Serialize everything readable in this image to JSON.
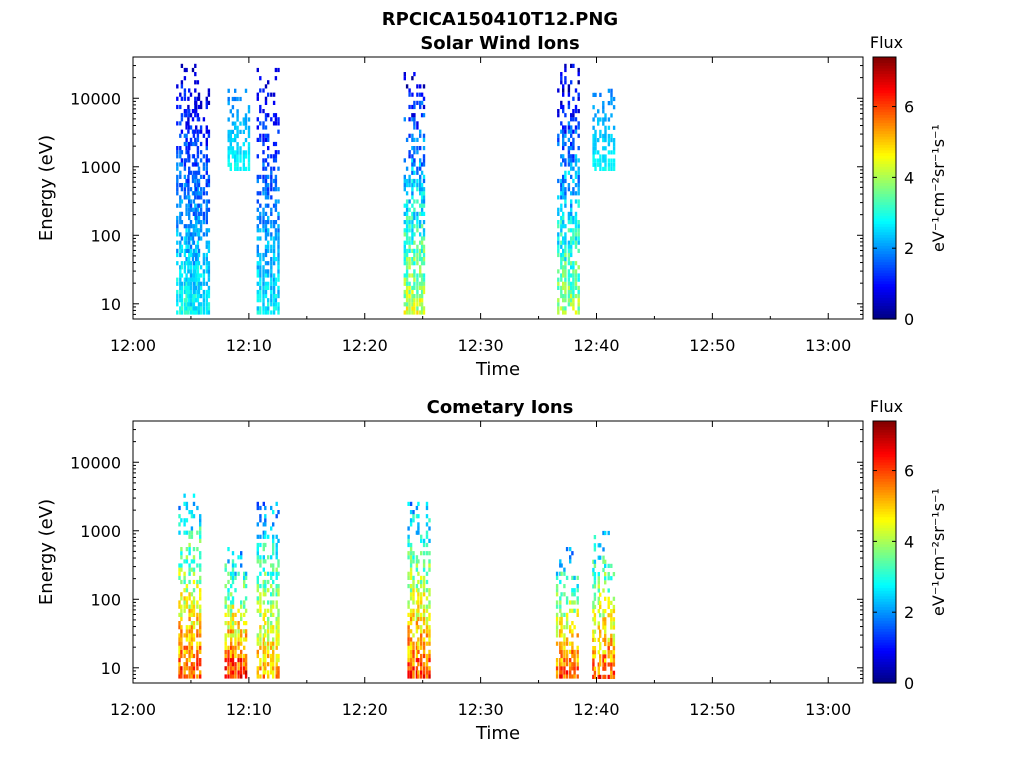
{
  "figure_title": "RPCICA150410T12.PNG",
  "chart_data": [
    {
      "type": "heatmap",
      "title": "Solar Wind Ions",
      "xlabel": "Time",
      "ylabel": "Energy (eV)",
      "x_ticks": [
        "12:00",
        "12:10",
        "12:20",
        "12:30",
        "12:40",
        "12:50",
        "13:00"
      ],
      "x_range": [
        "12:00",
        "13:03"
      ],
      "y_scale": "log",
      "y_ticks": [
        "10",
        "100",
        "1000",
        "10000"
      ],
      "y_range": [
        6,
        40000
      ],
      "colorbar": {
        "label": "Flux",
        "unit_label": "eV⁻¹cm⁻²sr⁻¹s⁻¹",
        "ticks": [
          "0",
          "2",
          "4",
          "6"
        ],
        "range": [
          0,
          7.4
        ],
        "colormap": "jet"
      },
      "clusters": [
        {
          "t": 4.6,
          "e": [
            8,
            40000
          ],
          "v": [
            0.5,
            3.5
          ]
        },
        {
          "t": 5.6,
          "e": [
            8,
            15000
          ],
          "v": [
            0.6,
            3.2
          ]
        },
        {
          "t": 9.0,
          "e": [
            1000,
            15000
          ],
          "v": [
            1.8,
            3.0
          ]
        },
        {
          "t": 11.6,
          "e": [
            8,
            30000
          ],
          "v": [
            0.6,
            3.2
          ]
        },
        {
          "t": 24.2,
          "e": [
            8,
            25000
          ],
          "v": [
            0.6,
            5.0
          ]
        },
        {
          "t": 37.5,
          "e": [
            8,
            35000
          ],
          "v": [
            0.4,
            4.6
          ]
        },
        {
          "t": 40.5,
          "e": [
            1000,
            15000
          ],
          "v": [
            1.8,
            3.0
          ]
        }
      ]
    },
    {
      "type": "heatmap",
      "title": "Cometary Ions",
      "xlabel": "Time",
      "ylabel": "Energy (eV)",
      "x_ticks": [
        "12:00",
        "12:10",
        "12:20",
        "12:30",
        "12:40",
        "12:50",
        "13:00"
      ],
      "x_range": [
        "12:00",
        "13:03"
      ],
      "y_scale": "log",
      "y_ticks": [
        "10",
        "100",
        "1000",
        "10000"
      ],
      "y_range": [
        6,
        40000
      ],
      "colorbar": {
        "label": "Flux",
        "unit_label": "eV⁻¹cm⁻²sr⁻¹s⁻¹",
        "ticks": [
          "0",
          "2",
          "4",
          "6"
        ],
        "range": [
          0,
          7.4
        ],
        "colormap": "jet"
      },
      "clusters": [
        {
          "t": 4.8,
          "e": [
            8,
            4000
          ],
          "v": [
            2.0,
            6.8
          ]
        },
        {
          "t": 8.8,
          "e": [
            8,
            600
          ],
          "v": [
            2.0,
            7.2
          ]
        },
        {
          "t": 11.6,
          "e": [
            8,
            3000
          ],
          "v": [
            1.8,
            6.0
          ]
        },
        {
          "t": 24.6,
          "e": [
            8,
            3000
          ],
          "v": [
            2.0,
            6.8
          ]
        },
        {
          "t": 37.4,
          "e": [
            8,
            600
          ],
          "v": [
            2.0,
            6.8
          ]
        },
        {
          "t": 40.5,
          "e": [
            6,
            1300
          ],
          "v": [
            2.0,
            7.0
          ]
        }
      ]
    }
  ]
}
